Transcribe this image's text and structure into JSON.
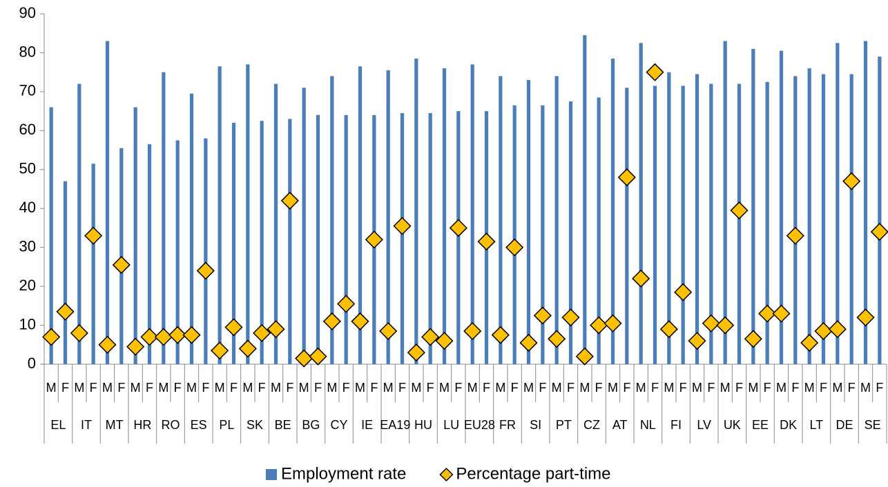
{
  "chart_data": {
    "type": "bar",
    "categories": [
      "M",
      "F",
      "M",
      "F",
      "M",
      "F",
      "M",
      "F",
      "M",
      "F",
      "M",
      "F",
      "M",
      "F",
      "M",
      "F",
      "M",
      "F",
      "M",
      "F",
      "M",
      "F",
      "M",
      "F",
      "M",
      "F",
      "M",
      "F",
      "M",
      "F",
      "M",
      "F",
      "M",
      "F",
      "M",
      "F",
      "M",
      "F",
      "M",
      "F",
      "M",
      "F",
      "M",
      "F",
      "M",
      "F",
      "M",
      "F",
      "M",
      "F",
      "M",
      "F",
      "M",
      "F",
      "M",
      "F",
      "M",
      "F",
      "M",
      "F"
    ],
    "groups": [
      "EL",
      "IT",
      "MT",
      "HR",
      "RO",
      "ES",
      "PL",
      "SK",
      "BE",
      "BG",
      "CY",
      "IE",
      "EA19",
      "HU",
      "LU",
      "EU28",
      "FR",
      "SI",
      "PT",
      "CZ",
      "AT",
      "NL",
      "FI",
      "LV",
      "UK",
      "EE",
      "DK",
      "LT",
      "DE",
      "SE"
    ],
    "series": [
      {
        "name": "Employment rate",
        "type": "bar",
        "color": "#4a7ebb",
        "values": [
          66,
          47,
          72,
          51.5,
          83,
          55.5,
          66,
          56.5,
          75,
          57.5,
          69.5,
          58,
          76.5,
          62,
          77,
          62.5,
          72,
          63,
          71,
          64,
          74,
          64,
          76.5,
          64,
          75.5,
          64.5,
          78.5,
          64.5,
          76,
          65,
          77,
          65,
          74,
          66.5,
          73,
          66.5,
          74,
          67.5,
          84.5,
          68.5,
          78.5,
          71,
          82.5,
          71.5,
          75,
          71.5,
          74.5,
          72,
          83,
          72,
          81,
          72.5,
          80.5,
          74,
          76,
          74.5,
          82.5,
          74.5,
          83,
          79
        ]
      },
      {
        "name": "Percentage part-time",
        "type": "scatter",
        "color": "#ffc000",
        "values": [
          7,
          13.5,
          8,
          33,
          5,
          25.5,
          4.5,
          7,
          7,
          7.5,
          7.5,
          24,
          3.5,
          9.5,
          4,
          8,
          9,
          42,
          1.5,
          2,
          11,
          15.5,
          11,
          32,
          8.5,
          35.5,
          3,
          7,
          6,
          35,
          8.5,
          31.5,
          7.5,
          30,
          5.5,
          12.5,
          6.5,
          12,
          2,
          10,
          10.5,
          48,
          22,
          75,
          9,
          18.5,
          6,
          10.5,
          10,
          39.5,
          6.5,
          13,
          13,
          33,
          5.5,
          8.5,
          9,
          47,
          12,
          34
        ]
      }
    ],
    "ylim": [
      0,
      90
    ],
    "yticks": [
      0,
      10,
      20,
      30,
      40,
      50,
      60,
      70,
      80,
      90
    ],
    "grid": false,
    "legend": "bottom"
  }
}
